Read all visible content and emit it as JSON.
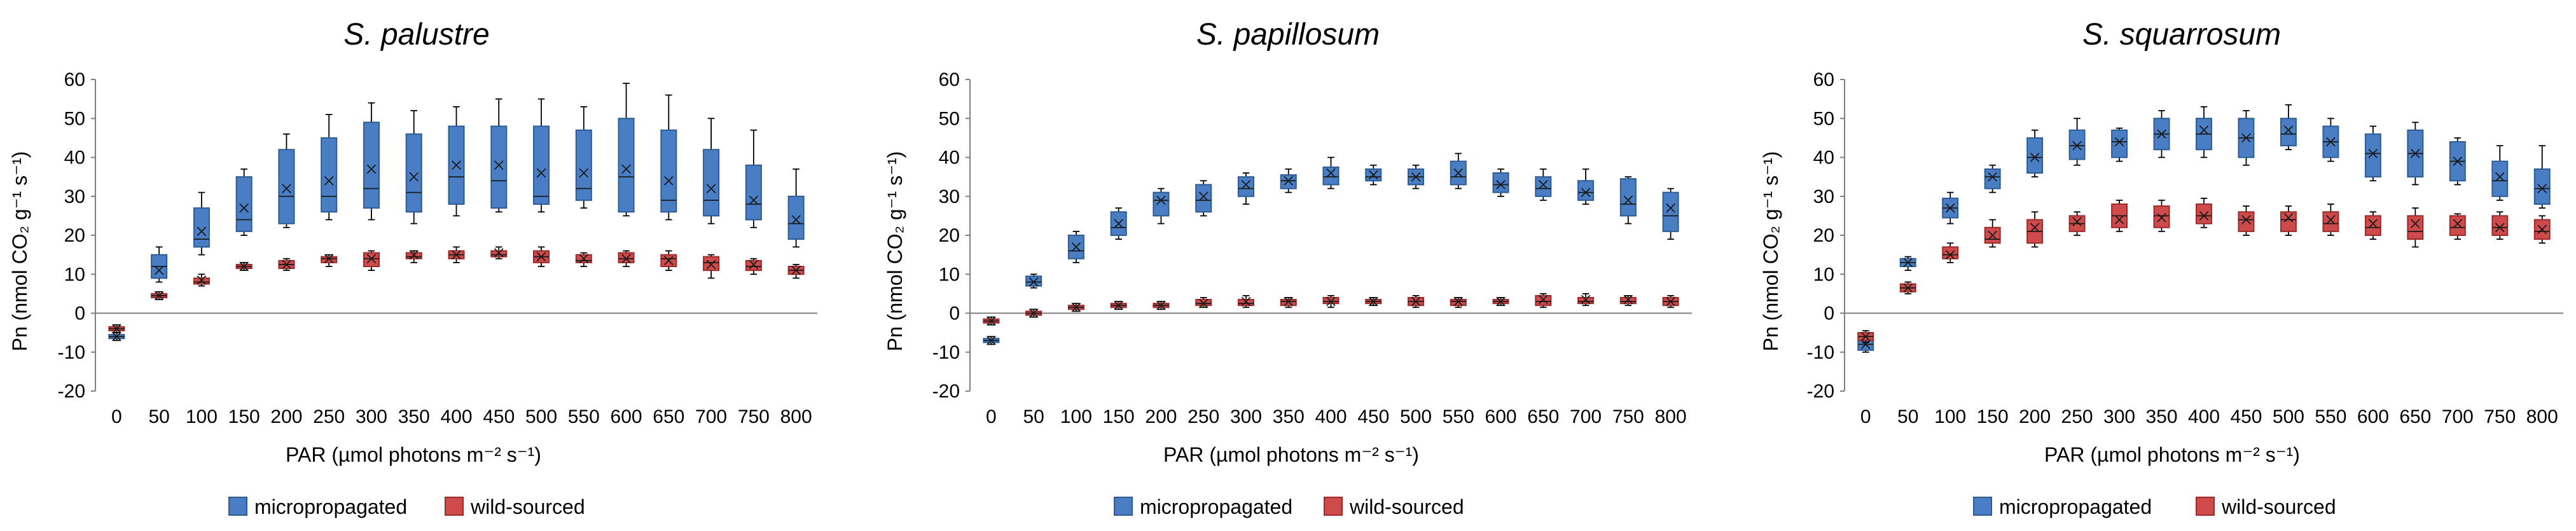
{
  "colors": {
    "micro": "#4a7ec4",
    "micro_edge": "#2d5c95",
    "wild": "#cf4b4b",
    "wild_edge": "#9c2a2a",
    "axis": "#7f7f7f",
    "whisker": "#000000"
  },
  "chart_data": [
    {
      "type": "box",
      "title": "S. palustre",
      "xlabel": "PAR (µmol photons m⁻² s⁻¹)",
      "ylabel": "Pn (nmol CO₂ g⁻¹ s⁻¹)",
      "ylim": [
        -20,
        60
      ],
      "yticks": [
        -20,
        -10,
        0,
        10,
        20,
        30,
        40,
        50,
        60
      ],
      "categories": [
        "0",
        "50",
        "100",
        "150",
        "200",
        "250",
        "300",
        "350",
        "400",
        "450",
        "500",
        "550",
        "600",
        "650",
        "700",
        "750",
        "800"
      ],
      "legend": [
        "micropropagated",
        "wild-sourced"
      ],
      "series": [
        {
          "name": "micropropagated",
          "stats": [
            [
              -7,
              -6.5,
              -6,
              -5.5,
              -5,
              -6
            ],
            [
              8,
              9,
              12,
              15,
              17,
              11
            ],
            [
              15,
              17,
              19,
              27,
              31,
              21
            ],
            [
              20,
              21,
              24,
              35,
              37,
              27
            ],
            [
              22,
              23,
              30,
              42,
              46,
              32
            ],
            [
              24,
              26,
              30,
              45,
              51,
              34
            ],
            [
              24,
              27,
              32,
              49,
              54,
              37
            ],
            [
              23,
              26,
              31,
              46,
              52,
              35
            ],
            [
              25,
              28,
              35,
              48,
              53,
              38
            ],
            [
              26,
              27,
              34,
              48,
              55,
              38
            ],
            [
              26,
              28,
              30,
              48,
              55,
              36
            ],
            [
              27,
              29,
              32,
              47,
              53,
              36
            ],
            [
              25,
              26,
              35,
              50,
              59,
              37
            ],
            [
              24,
              26,
              29,
              47,
              56,
              34
            ],
            [
              23,
              25,
              29,
              42,
              50,
              32
            ],
            [
              22,
              24,
              28,
              38,
              47,
              29
            ],
            [
              17,
              19,
              23,
              30,
              37,
              24
            ]
          ]
        },
        {
          "name": "wild-sourced",
          "stats": [
            [
              -5,
              -4.5,
              -4,
              -3.5,
              -3,
              -4
            ],
            [
              3.5,
              4,
              4.5,
              5,
              5.5,
              4.5
            ],
            [
              7,
              7.5,
              8,
              9,
              10,
              8.5
            ],
            [
              11,
              11.5,
              12,
              12.5,
              13,
              12
            ],
            [
              11,
              11.5,
              12.5,
              13.5,
              14,
              12.5
            ],
            [
              12,
              13,
              14,
              14.5,
              15,
              14
            ],
            [
              11,
              12,
              14,
              15.5,
              16,
              14
            ],
            [
              13,
              14,
              14.5,
              15.5,
              16,
              15
            ],
            [
              13,
              14,
              15,
              16,
              17,
              15
            ],
            [
              14,
              14.5,
              15,
              16,
              17,
              15.5
            ],
            [
              12,
              13,
              14.5,
              16,
              17,
              14.5
            ],
            [
              12,
              13,
              13.5,
              15,
              15.5,
              14
            ],
            [
              12,
              13,
              14,
              15.5,
              16,
              14
            ],
            [
              11,
              12,
              14,
              15,
              16,
              13.5
            ],
            [
              9,
              11,
              13,
              14.5,
              15,
              12.5
            ],
            [
              10,
              11,
              12,
              13.5,
              14,
              12.5
            ],
            [
              9,
              10,
              11,
              12,
              12.5,
              11
            ]
          ]
        }
      ]
    },
    {
      "type": "box",
      "title": "S. papillosum",
      "xlabel": "PAR (µmol photons m⁻² s⁻¹)",
      "ylabel": "Pn (nmol CO₂ g⁻¹ s⁻¹)",
      "ylim": [
        -20,
        60
      ],
      "yticks": [
        -20,
        -10,
        0,
        10,
        20,
        30,
        40,
        50,
        60
      ],
      "categories": [
        "0",
        "50",
        "100",
        "150",
        "200",
        "250",
        "300",
        "350",
        "400",
        "450",
        "500",
        "550",
        "600",
        "650",
        "700",
        "750",
        "800"
      ],
      "legend": [
        "micropropagated",
        "wild-sourced"
      ],
      "series": [
        {
          "name": "micropropagated",
          "stats": [
            [
              -8,
              -7.5,
              -7,
              -6.5,
              -6,
              -7
            ],
            [
              6.5,
              7,
              8,
              9.5,
              10,
              8
            ],
            [
              13,
              14,
              16,
              20,
              21,
              17
            ],
            [
              19,
              20,
              22,
              26,
              27,
              23
            ],
            [
              23,
              25,
              29,
              31,
              32,
              29
            ],
            [
              25,
              26,
              29,
              33,
              34,
              30
            ],
            [
              28,
              30,
              32,
              35,
              36,
              33
            ],
            [
              31,
              32,
              34,
              35.5,
              37,
              34
            ],
            [
              32,
              33,
              35,
              37.5,
              40,
              36
            ],
            [
              33,
              34,
              35,
              37,
              38,
              35.5
            ],
            [
              32,
              33,
              35,
              37,
              38,
              35
            ],
            [
              32,
              33,
              35,
              39,
              41,
              36
            ],
            [
              30,
              31,
              33,
              36,
              37,
              33
            ],
            [
              29,
              30,
              32,
              35,
              37,
              33
            ],
            [
              28,
              29,
              31,
              34,
              37,
              31
            ],
            [
              23,
              25,
              28,
              34.5,
              35,
              29
            ],
            [
              19,
              21,
              25,
              31,
              32,
              27
            ]
          ]
        },
        {
          "name": "wild-sourced",
          "stats": [
            [
              -3,
              -2.5,
              -2,
              -1.5,
              -1,
              -2
            ],
            [
              -1,
              -0.5,
              0,
              0.5,
              1,
              0
            ],
            [
              0.5,
              1,
              1.5,
              2,
              2.5,
              1.5
            ],
            [
              1,
              1.5,
              2,
              2.5,
              3,
              2
            ],
            [
              1,
              1.5,
              2,
              2.5,
              3,
              2
            ],
            [
              1.5,
              2,
              2.5,
              3.5,
              4,
              2.5
            ],
            [
              1.5,
              2,
              2.5,
              3.5,
              4.5,
              3
            ],
            [
              1.5,
              2,
              3,
              3.5,
              4,
              3
            ],
            [
              1.5,
              2.5,
              3,
              4,
              4.5,
              3
            ],
            [
              2,
              2.5,
              3,
              3.5,
              4,
              3
            ],
            [
              1.5,
              2,
              3,
              4,
              4.5,
              3
            ],
            [
              1.5,
              2,
              3,
              3.5,
              4,
              3
            ],
            [
              2,
              2.5,
              3,
              3.5,
              4,
              3
            ],
            [
              1.5,
              2,
              3,
              4.5,
              5,
              3.5
            ],
            [
              2,
              2.5,
              3,
              4,
              5,
              3.5
            ],
            [
              2,
              2.5,
              3,
              4,
              4.5,
              3.5
            ],
            [
              1.5,
              2,
              3,
              4,
              4.5,
              3
            ]
          ]
        }
      ]
    },
    {
      "type": "box",
      "title": "S. squarrosum",
      "xlabel": "PAR (µmol photons m⁻² s⁻¹)",
      "ylabel": "Pn (nmol CO₂ g⁻¹ s⁻¹)",
      "ylim": [
        -20,
        60
      ],
      "yticks": [
        -20,
        -10,
        0,
        10,
        20,
        30,
        40,
        50,
        60
      ],
      "categories": [
        "0",
        "50",
        "100",
        "150",
        "200",
        "250",
        "300",
        "350",
        "400",
        "450",
        "500",
        "550",
        "600",
        "650",
        "700",
        "750",
        "800"
      ],
      "legend": [
        "micropropagated",
        "wild-sourced"
      ],
      "series": [
        {
          "name": "micropropagated",
          "stats": [
            [
              -10,
              -9.5,
              -8,
              -7,
              -6.5,
              -8
            ],
            [
              11,
              12,
              13,
              14,
              14.5,
              13
            ],
            [
              23,
              24.5,
              27,
              29.5,
              31,
              27
            ],
            [
              31,
              32,
              35,
              37,
              38,
              35
            ],
            [
              35,
              36,
              40,
              45,
              47,
              40
            ],
            [
              38,
              39.5,
              43,
              47,
              50,
              43
            ],
            [
              39,
              40,
              44,
              47,
              47.5,
              44
            ],
            [
              40,
              42,
              46,
              50,
              52,
              46
            ],
            [
              40,
              42,
              46,
              50,
              53,
              47
            ],
            [
              38,
              40,
              45,
              50,
              52,
              45
            ],
            [
              42,
              43,
              46,
              50,
              53.5,
              47
            ],
            [
              39,
              40,
              44,
              48,
              50,
              44
            ],
            [
              34,
              35,
              41,
              46,
              48,
              41
            ],
            [
              33,
              35,
              41,
              47,
              49,
              41
            ],
            [
              33,
              34,
              39,
              44,
              45,
              39
            ],
            [
              29,
              30,
              34,
              39,
              43,
              35
            ],
            [
              27,
              28,
              32,
              37,
              43,
              32
            ]
          ]
        },
        {
          "name": "wild-sourced",
          "stats": [
            [
              -7.5,
              -7,
              -6,
              -5,
              -4.5,
              -6
            ],
            [
              5,
              5.5,
              6.5,
              7.5,
              8,
              6.5
            ],
            [
              13,
              14,
              15,
              17,
              18,
              15
            ],
            [
              17,
              18,
              19,
              22,
              24,
              20
            ],
            [
              17,
              18,
              21,
              24,
              26,
              22
            ],
            [
              20,
              21,
              23,
              25,
              26,
              23.5
            ],
            [
              21,
              22,
              25,
              28,
              29,
              24
            ],
            [
              21,
              22,
              25,
              27.5,
              29,
              24.5
            ],
            [
              22,
              23,
              25,
              28,
              29.5,
              25
            ],
            [
              20,
              21,
              24,
              26,
              27.5,
              24
            ],
            [
              20,
              21,
              24,
              26,
              27.5,
              24.5
            ],
            [
              20,
              21,
              23,
              26,
              28,
              24
            ],
            [
              19,
              20,
              22,
              25,
              26,
              23
            ],
            [
              17,
              19,
              21,
              25,
              27,
              23
            ],
            [
              19,
              20,
              22,
              25,
              25.5,
              23
            ],
            [
              19,
              20,
              22,
              25,
              26,
              22
            ],
            [
              18,
              19,
              21,
              24,
              25,
              21.5
            ]
          ]
        }
      ]
    }
  ]
}
